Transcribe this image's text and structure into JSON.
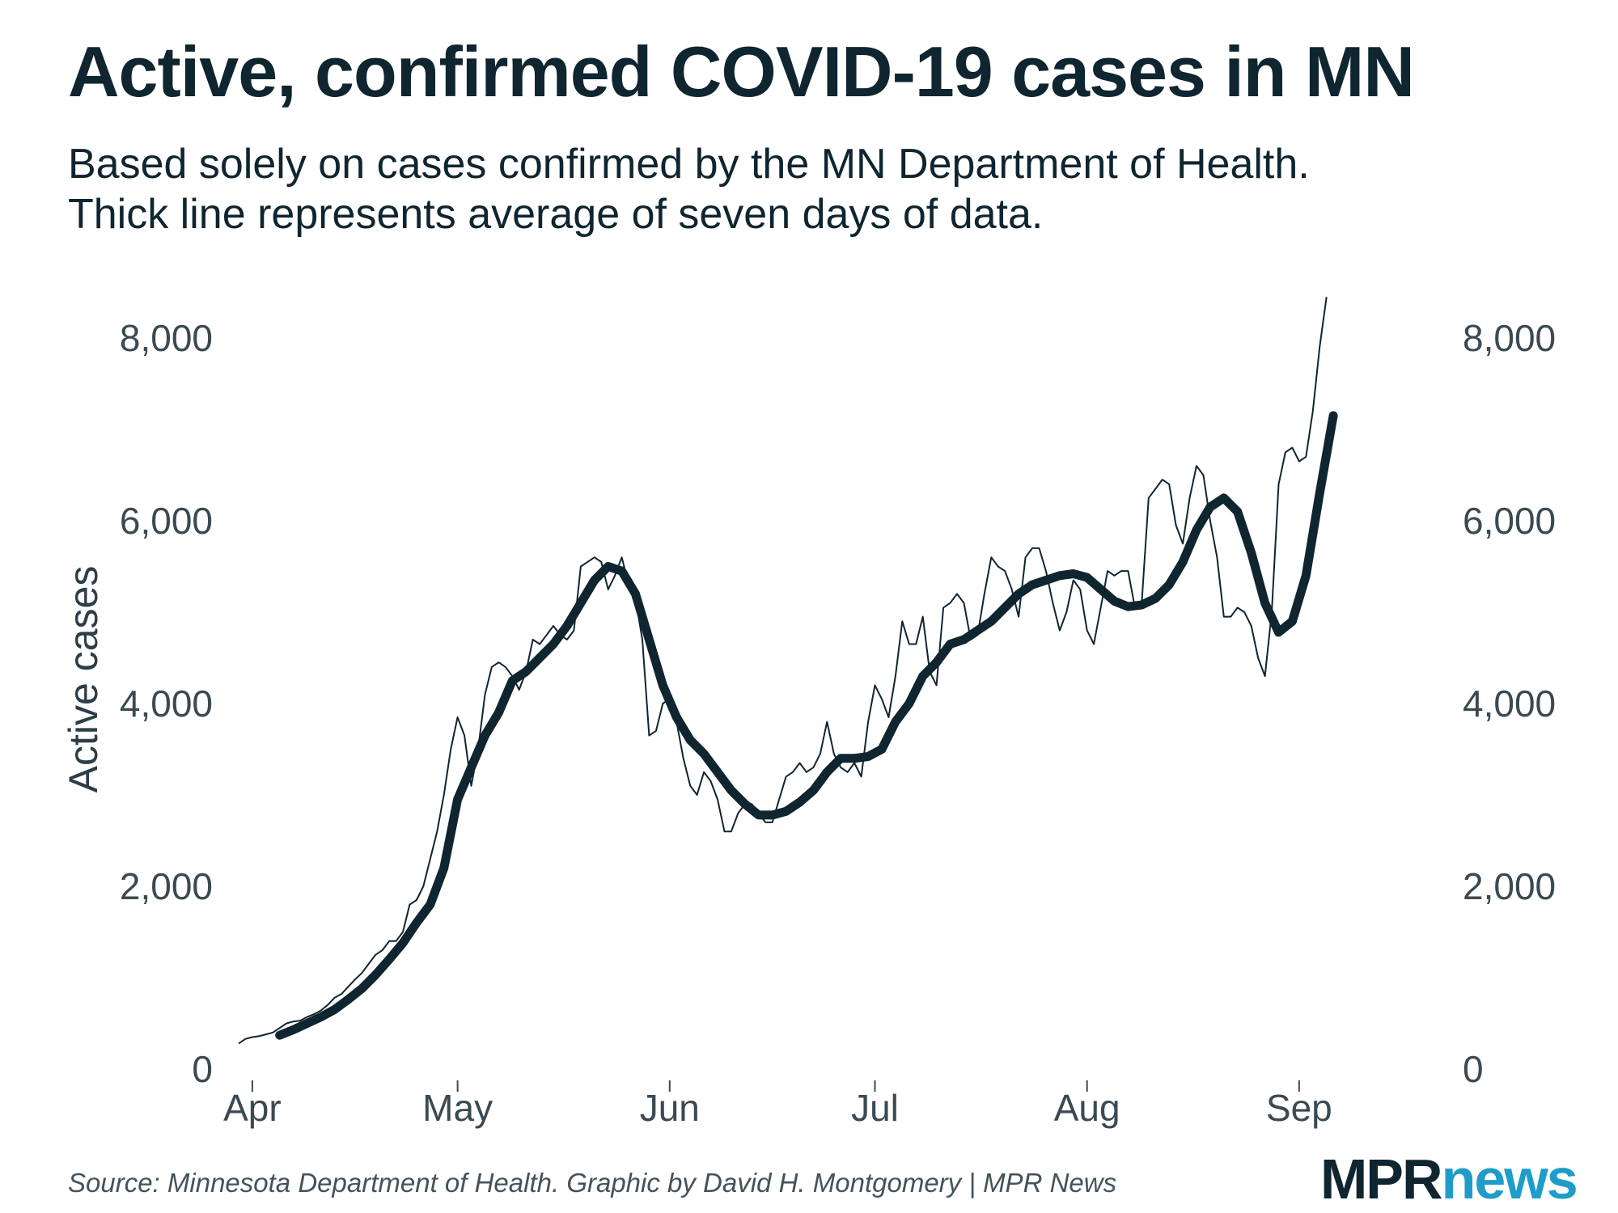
{
  "title": "Active, confirmed COVID-19 cases in MN",
  "subtitle": {
    "line1": "Based solely on cases confirmed by the MN Department of Health.",
    "line2": "Thick line represents average of seven days of data."
  },
  "source": "Source: Minnesota Department of Health. Graphic by David H. Montgomery | MPR News",
  "logo": {
    "part1": "MPR",
    "part2": "news"
  },
  "colors": {
    "line": "#0f2530",
    "text": "#0f2530",
    "tick": "#3b4a52",
    "logo_accent": "#1f9cc9"
  },
  "chart_data": {
    "type": "line",
    "title": "Active, confirmed COVID-19 cases in MN",
    "xlabel": "",
    "ylabel": "Active cases",
    "ylim": [
      0,
      8000
    ],
    "xlim": [
      -2,
      173
    ],
    "x_axis": "days since Apr 1",
    "yticks": [
      0,
      2000,
      4000,
      6000,
      8000
    ],
    "ytick_labels": [
      "0",
      "2,000",
      "4,000",
      "6,000",
      "8,000"
    ],
    "xticks": [
      {
        "label": "Apr",
        "day": 0
      },
      {
        "label": "May",
        "day": 30
      },
      {
        "label": "Jun",
        "day": 61
      },
      {
        "label": "Jul",
        "day": 91
      },
      {
        "label": "Aug",
        "day": 122
      },
      {
        "label": "Sep",
        "day": 153
      }
    ],
    "grid": false,
    "series": [
      {
        "name": "Daily active cases",
        "style": "thin",
        "points": [
          [
            -2,
            280
          ],
          [
            -1,
            330
          ],
          [
            0,
            350
          ],
          [
            1,
            360
          ],
          [
            2,
            380
          ],
          [
            3,
            400
          ],
          [
            4,
            450
          ],
          [
            5,
            500
          ],
          [
            6,
            520
          ],
          [
            7,
            530
          ],
          [
            8,
            570
          ],
          [
            9,
            600
          ],
          [
            10,
            640
          ],
          [
            11,
            700
          ],
          [
            12,
            780
          ],
          [
            13,
            820
          ],
          [
            14,
            900
          ],
          [
            15,
            980
          ],
          [
            16,
            1050
          ],
          [
            17,
            1150
          ],
          [
            18,
            1250
          ],
          [
            19,
            1300
          ],
          [
            20,
            1400
          ],
          [
            21,
            1400
          ],
          [
            22,
            1500
          ],
          [
            23,
            1800
          ],
          [
            24,
            1850
          ],
          [
            25,
            2000
          ],
          [
            26,
            2300
          ],
          [
            27,
            2600
          ],
          [
            28,
            3000
          ],
          [
            29,
            3500
          ],
          [
            30,
            3850
          ],
          [
            31,
            3650
          ],
          [
            32,
            3100
          ],
          [
            33,
            3500
          ],
          [
            34,
            4100
          ],
          [
            35,
            4400
          ],
          [
            36,
            4450
          ],
          [
            37,
            4400
          ],
          [
            38,
            4300
          ],
          [
            39,
            4150
          ],
          [
            40,
            4350
          ],
          [
            41,
            4700
          ],
          [
            42,
            4650
          ],
          [
            43,
            4750
          ],
          [
            44,
            4850
          ],
          [
            45,
            4750
          ],
          [
            46,
            4700
          ],
          [
            47,
            4800
          ],
          [
            48,
            5500
          ],
          [
            49,
            5550
          ],
          [
            50,
            5600
          ],
          [
            51,
            5550
          ],
          [
            52,
            5250
          ],
          [
            53,
            5400
          ],
          [
            54,
            5600
          ],
          [
            55,
            5300
          ],
          [
            56,
            5150
          ],
          [
            57,
            4700
          ],
          [
            58,
            3650
          ],
          [
            59,
            3700
          ],
          [
            60,
            4000
          ],
          [
            61,
            4050
          ],
          [
            62,
            3800
          ],
          [
            63,
            3400
          ],
          [
            64,
            3100
          ],
          [
            65,
            3000
          ],
          [
            66,
            3250
          ],
          [
            67,
            3150
          ],
          [
            68,
            2950
          ],
          [
            69,
            2600
          ],
          [
            70,
            2600
          ],
          [
            71,
            2800
          ],
          [
            72,
            2900
          ],
          [
            73,
            2900
          ],
          [
            74,
            2800
          ],
          [
            75,
            2700
          ],
          [
            76,
            2700
          ],
          [
            77,
            2950
          ],
          [
            78,
            3200
          ],
          [
            79,
            3250
          ],
          [
            80,
            3350
          ],
          [
            81,
            3250
          ],
          [
            82,
            3300
          ],
          [
            83,
            3450
          ],
          [
            84,
            3800
          ],
          [
            85,
            3450
          ],
          [
            86,
            3300
          ],
          [
            87,
            3250
          ],
          [
            88,
            3350
          ],
          [
            89,
            3200
          ],
          [
            90,
            3800
          ],
          [
            91,
            4200
          ],
          [
            92,
            4050
          ],
          [
            93,
            3850
          ],
          [
            94,
            4300
          ],
          [
            95,
            4900
          ],
          [
            96,
            4650
          ],
          [
            97,
            4650
          ],
          [
            98,
            4950
          ],
          [
            99,
            4350
          ],
          [
            100,
            4200
          ],
          [
            101,
            5050
          ],
          [
            102,
            5100
          ],
          [
            103,
            5200
          ],
          [
            104,
            5100
          ],
          [
            105,
            4700
          ],
          [
            106,
            4750
          ],
          [
            107,
            5200
          ],
          [
            108,
            5600
          ],
          [
            109,
            5500
          ],
          [
            110,
            5450
          ],
          [
            111,
            5250
          ],
          [
            112,
            4950
          ],
          [
            113,
            5600
          ],
          [
            114,
            5700
          ],
          [
            115,
            5700
          ],
          [
            116,
            5450
          ],
          [
            117,
            5100
          ],
          [
            118,
            4800
          ],
          [
            119,
            5000
          ],
          [
            120,
            5350
          ],
          [
            121,
            5250
          ],
          [
            122,
            4800
          ],
          [
            123,
            4650
          ],
          [
            124,
            5050
          ],
          [
            125,
            5450
          ],
          [
            126,
            5400
          ],
          [
            127,
            5450
          ],
          [
            128,
            5450
          ],
          [
            129,
            5050
          ],
          [
            130,
            5100
          ],
          [
            131,
            6250
          ],
          [
            132,
            6350
          ],
          [
            133,
            6450
          ],
          [
            134,
            6400
          ],
          [
            135,
            5950
          ],
          [
            136,
            5750
          ],
          [
            137,
            6250
          ],
          [
            138,
            6600
          ],
          [
            139,
            6500
          ],
          [
            140,
            6000
          ],
          [
            141,
            5600
          ],
          [
            142,
            4950
          ],
          [
            143,
            4950
          ],
          [
            144,
            5050
          ],
          [
            145,
            5000
          ],
          [
            146,
            4850
          ],
          [
            147,
            4500
          ],
          [
            148,
            4300
          ],
          [
            149,
            5000
          ],
          [
            150,
            6400
          ],
          [
            151,
            6750
          ],
          [
            152,
            6800
          ],
          [
            153,
            6650
          ],
          [
            154,
            6700
          ],
          [
            155,
            7200
          ],
          [
            156,
            7900
          ],
          [
            157,
            8450
          ]
        ]
      },
      {
        "name": "7-day average",
        "style": "thick",
        "points": [
          [
            4,
            370
          ],
          [
            6,
            430
          ],
          [
            8,
            500
          ],
          [
            10,
            570
          ],
          [
            12,
            650
          ],
          [
            14,
            760
          ],
          [
            16,
            880
          ],
          [
            18,
            1030
          ],
          [
            20,
            1200
          ],
          [
            22,
            1380
          ],
          [
            24,
            1600
          ],
          [
            26,
            1800
          ],
          [
            28,
            2200
          ],
          [
            30,
            2950
          ],
          [
            32,
            3300
          ],
          [
            34,
            3650
          ],
          [
            36,
            3900
          ],
          [
            38,
            4250
          ],
          [
            40,
            4350
          ],
          [
            42,
            4500
          ],
          [
            44,
            4650
          ],
          [
            46,
            4850
          ],
          [
            48,
            5100
          ],
          [
            50,
            5350
          ],
          [
            52,
            5500
          ],
          [
            54,
            5450
          ],
          [
            56,
            5200
          ],
          [
            58,
            4700
          ],
          [
            60,
            4200
          ],
          [
            62,
            3850
          ],
          [
            64,
            3600
          ],
          [
            66,
            3450
          ],
          [
            68,
            3250
          ],
          [
            70,
            3050
          ],
          [
            72,
            2900
          ],
          [
            74,
            2780
          ],
          [
            76,
            2780
          ],
          [
            78,
            2820
          ],
          [
            80,
            2920
          ],
          [
            82,
            3050
          ],
          [
            84,
            3250
          ],
          [
            86,
            3400
          ],
          [
            88,
            3400
          ],
          [
            90,
            3420
          ],
          [
            92,
            3500
          ],
          [
            94,
            3800
          ],
          [
            96,
            4000
          ],
          [
            98,
            4300
          ],
          [
            100,
            4450
          ],
          [
            102,
            4650
          ],
          [
            104,
            4700
          ],
          [
            106,
            4800
          ],
          [
            108,
            4900
          ],
          [
            110,
            5050
          ],
          [
            112,
            5200
          ],
          [
            114,
            5300
          ],
          [
            116,
            5350
          ],
          [
            118,
            5400
          ],
          [
            120,
            5420
          ],
          [
            122,
            5380
          ],
          [
            124,
            5250
          ],
          [
            126,
            5120
          ],
          [
            128,
            5060
          ],
          [
            130,
            5080
          ],
          [
            132,
            5150
          ],
          [
            134,
            5300
          ],
          [
            136,
            5550
          ],
          [
            138,
            5900
          ],
          [
            140,
            6150
          ],
          [
            142,
            6250
          ],
          [
            144,
            6100
          ],
          [
            146,
            5650
          ],
          [
            148,
            5100
          ],
          [
            150,
            4780
          ],
          [
            152,
            4900
          ],
          [
            154,
            5400
          ],
          [
            156,
            6300
          ],
          [
            158,
            7150
          ]
        ]
      }
    ]
  }
}
